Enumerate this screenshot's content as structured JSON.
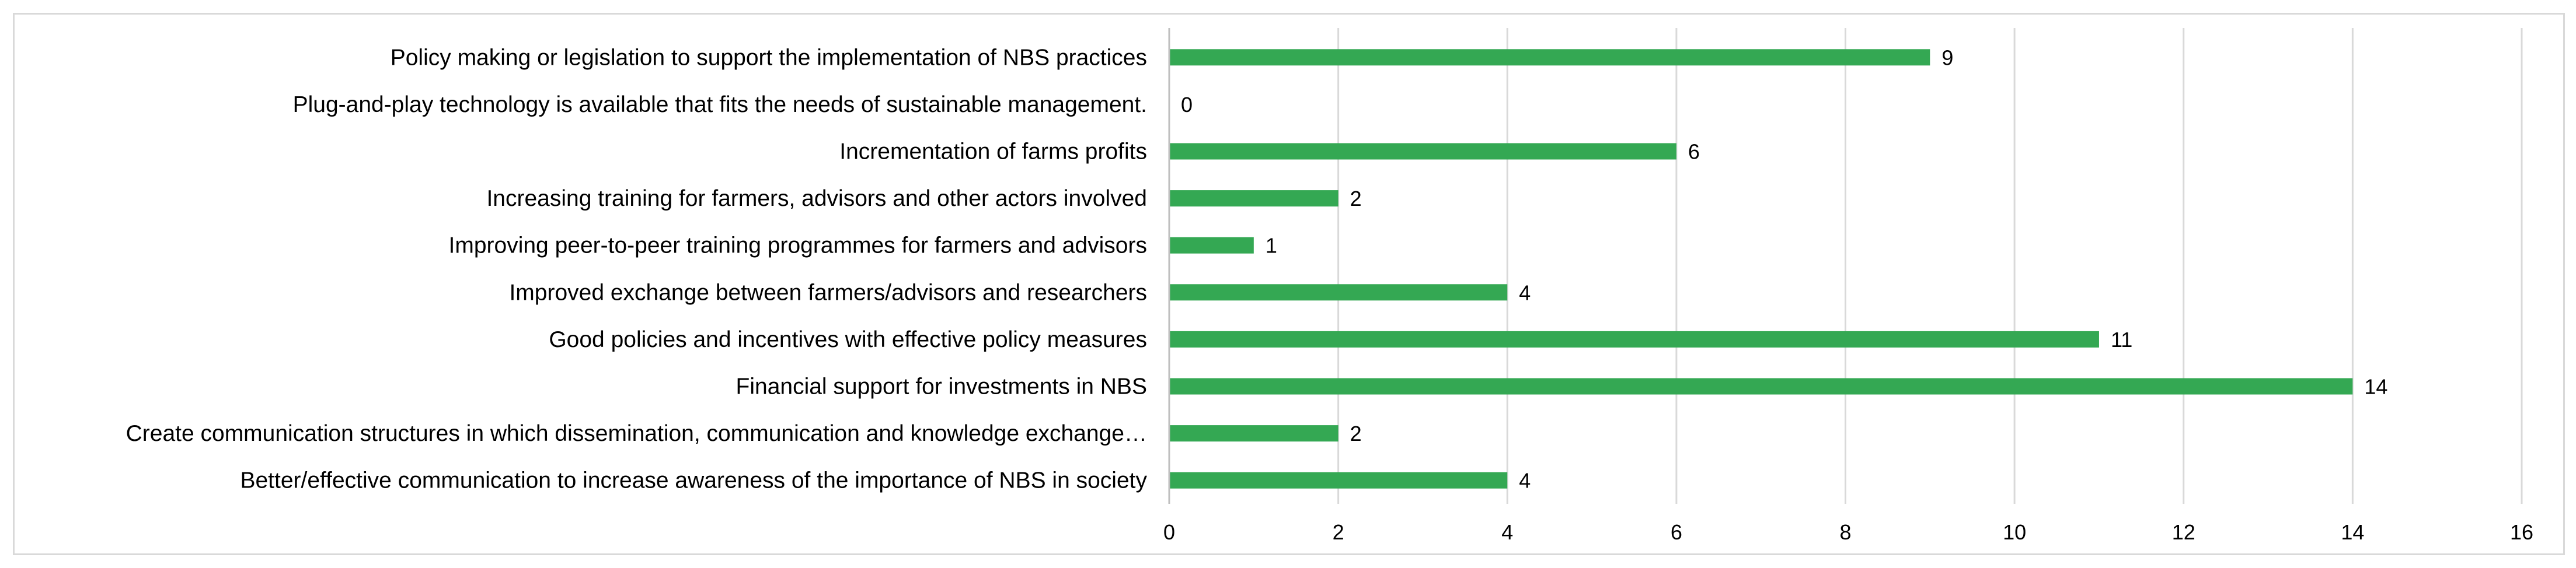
{
  "chart_data": {
    "type": "bar",
    "orientation": "horizontal",
    "categories": [
      "Policy making or legislation to support the implementation of NBS practices",
      "Plug-and-play technology is available that fits the needs of sustainable management.",
      "Incrementation of farms profits",
      "Increasing training for farmers, advisors and other actors involved",
      "Improving peer-to-peer training programmes for farmers and advisors",
      "Improved exchange between farmers/advisors and researchers",
      "Good policies and incentives with effective policy measures",
      "Financial support for investments in NBS",
      "Create communication structures in which dissemination, communication and knowledge exchange…",
      "Better/effective communication to increase awareness of the importance of NBS in society"
    ],
    "values": [
      9,
      0,
      6,
      2,
      1,
      4,
      11,
      14,
      2,
      4
    ],
    "data_labels": [
      "9",
      "0",
      "6",
      "2",
      "1",
      "4",
      "11",
      "14",
      "2",
      "4"
    ],
    "x_ticks": [
      "0",
      "2",
      "4",
      "6",
      "8",
      "10",
      "12",
      "14",
      "16"
    ],
    "xlim": [
      0,
      16
    ],
    "title": "",
    "xlabel": "",
    "ylabel": "",
    "grid": "vertical",
    "legend": "none",
    "bar_color": "#34a853",
    "grid_color": "#d9d9d9",
    "axis_color": "#bfbfbf",
    "border_color": "#d9d9d9"
  }
}
